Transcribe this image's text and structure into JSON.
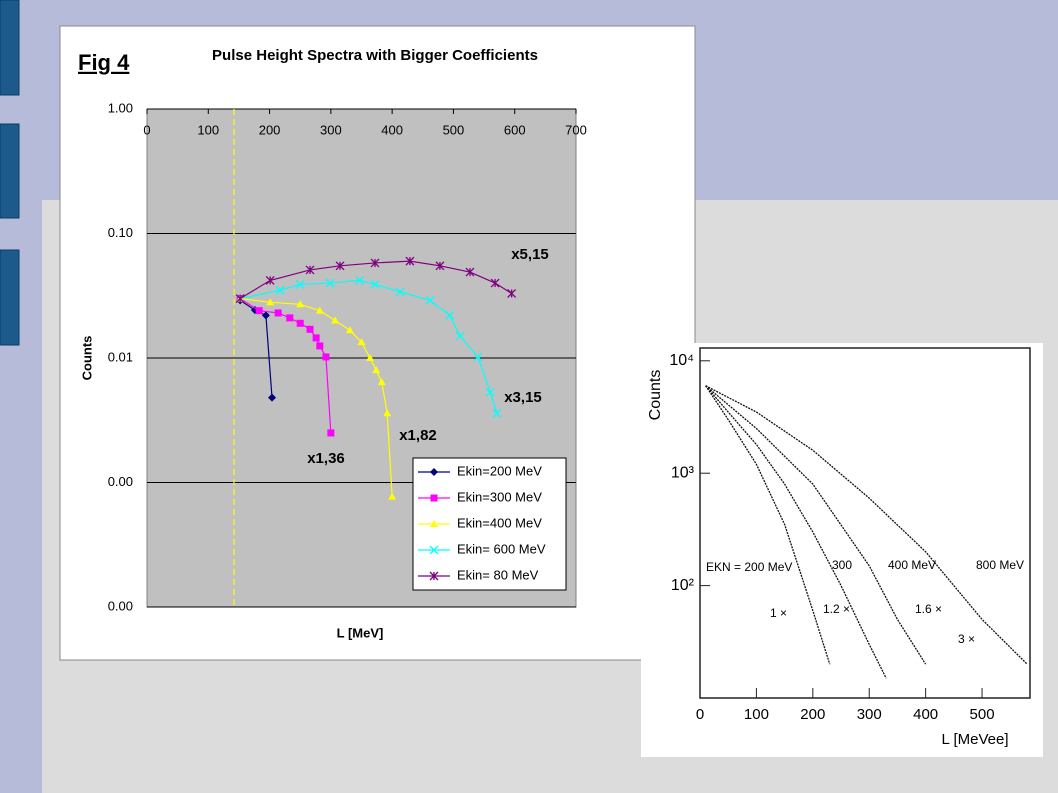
{
  "chart_data": [
    {
      "type": "line",
      "title": "Pulse Height Spectra with Bigger Coefficients",
      "figure_label": "Fig 4",
      "xlabel": "L [MeV]",
      "ylabel": "Counts",
      "log_y": true,
      "grid": true,
      "legend": "lower right",
      "xlim": [
        0,
        700
      ],
      "xticks": [
        0,
        100,
        200,
        300,
        400,
        500,
        600,
        700
      ],
      "ylim": [
        0.0001,
        1
      ],
      "yticks": [
        {
          "value": 1,
          "label": "1.00"
        },
        {
          "value": 0.1,
          "label": "0.10"
        },
        {
          "value": 0.01,
          "label": "0.01"
        },
        {
          "value": 0.001,
          "label": "0.00"
        },
        {
          "value": 0.0001,
          "label": "0.00"
        }
      ],
      "reference_line": {
        "x": 142,
        "color": "#ffff00"
      },
      "series": [
        {
          "name": "Ekin=200 MeV",
          "color": "#000080",
          "marker": "diamond",
          "x": [
            152,
            176,
            194,
            204
          ],
          "values": [
            0.029,
            0.0243,
            0.022,
            0.0048
          ]
        },
        {
          "name": "Ekin=300 MeV",
          "color": "#ff00ff",
          "marker": "square",
          "x": [
            152,
            183,
            214,
            233,
            250,
            266,
            276,
            282,
            292,
            300
          ],
          "values": [
            0.03,
            0.024,
            0.023,
            0.021,
            0.019,
            0.017,
            0.0145,
            0.0125,
            0.0102,
            0.0025
          ]
        },
        {
          "name": "Ekin=400 MeV",
          "color": "#ffff00",
          "marker": "triangle",
          "x": [
            152,
            201,
            250,
            282,
            307,
            331,
            350,
            364,
            374,
            383,
            392,
            400
          ],
          "values": [
            0.03,
            0.028,
            0.027,
            0.024,
            0.02,
            0.0167,
            0.0134,
            0.01,
            0.008,
            0.0064,
            0.0036,
            0.00077
          ]
        },
        {
          "name": "Ekin= 600 MeV",
          "color": "#00ffff",
          "marker": "x",
          "x": [
            152,
            217,
            250,
            299,
            347,
            372,
            413,
            462,
            494,
            511,
            540,
            560,
            571
          ],
          "values": [
            0.03,
            0.035,
            0.039,
            0.04,
            0.042,
            0.039,
            0.034,
            0.029,
            0.022,
            0.015,
            0.0102,
            0.0053,
            0.0036
          ]
        },
        {
          "name": "Ekin= 80 MeV",
          "color": "#800080",
          "marker": "star",
          "x": [
            152,
            201,
            266,
            315,
            372,
            429,
            478,
            527,
            568,
            595
          ],
          "values": [
            0.03,
            0.042,
            0.051,
            0.055,
            0.058,
            0.06,
            0.055,
            0.049,
            0.04,
            0.033
          ]
        }
      ],
      "annotations": [
        "x5,15",
        "x3,15",
        "x1,82",
        "x1,36"
      ]
    },
    {
      "type": "line",
      "xlabel": "L [MeVee]",
      "ylabel": "Counts",
      "log_y": true,
      "xlim": [
        0,
        585
      ],
      "xticks": [
        0,
        100,
        200,
        300,
        400,
        500
      ],
      "ylim": [
        10,
        13000
      ],
      "yticks": [
        {
          "value": 100,
          "label": "10²"
        },
        {
          "value": 1000,
          "label": "10³"
        },
        {
          "value": 10000,
          "label": "10⁴"
        }
      ],
      "series": [
        {
          "color": "#111111",
          "x": [
            10,
            50,
            100,
            150,
            200,
            230
          ],
          "values": [
            6000,
            3000,
            1200,
            350,
            60,
            20
          ]
        },
        {
          "color": "#111111",
          "x": [
            10,
            50,
            100,
            150,
            200,
            250,
            300,
            330
          ],
          "values": [
            6000,
            3500,
            1800,
            800,
            300,
            100,
            30,
            15
          ]
        },
        {
          "color": "#111111",
          "x": [
            10,
            100,
            200,
            300,
            350,
            400
          ],
          "values": [
            6000,
            2500,
            800,
            150,
            50,
            20
          ]
        },
        {
          "color": "#111111",
          "x": [
            10,
            100,
            200,
            300,
            400,
            500,
            580
          ],
          "values": [
            6000,
            3500,
            1600,
            600,
            200,
            50,
            20
          ]
        }
      ],
      "annotations": [
        "EKN = 200 MeV",
        "300",
        "400 MeV",
        "800 MeV",
        "1 ×",
        "1.2 ×",
        "1.6 ×",
        "3 ×"
      ]
    }
  ]
}
